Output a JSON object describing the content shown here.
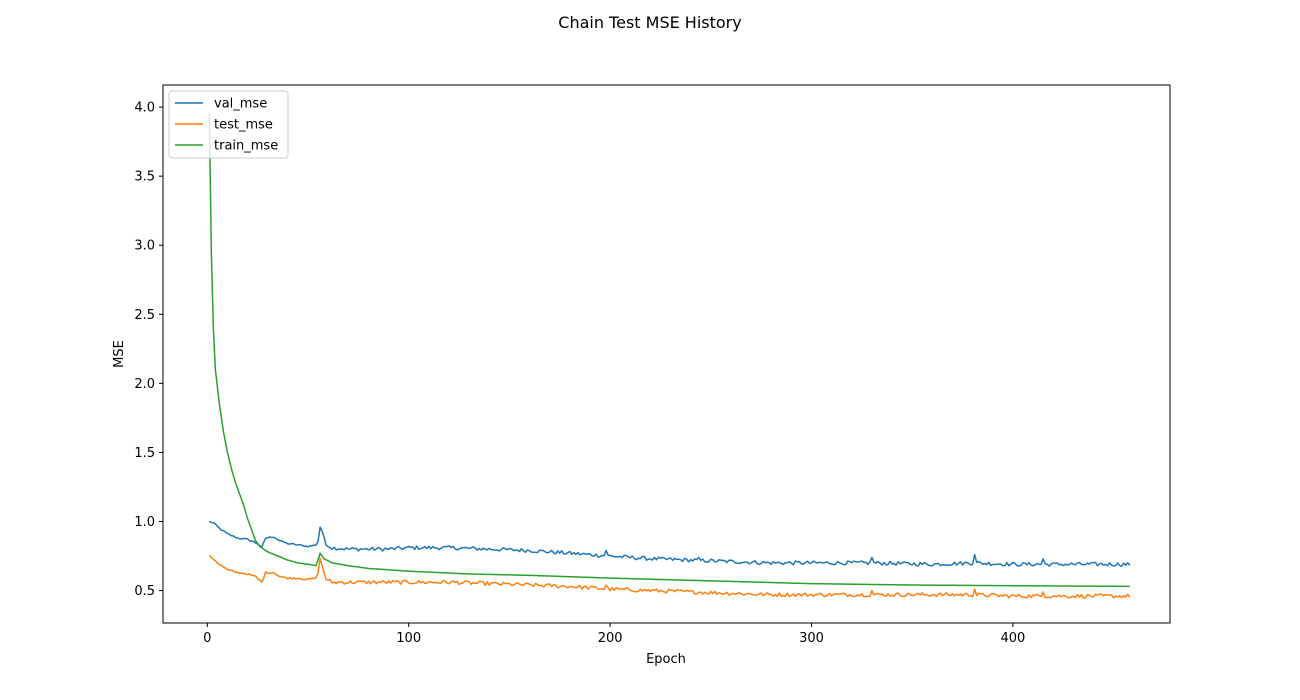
{
  "chart_data": {
    "type": "line",
    "title": "Chain Test MSE History",
    "xlabel": "Epoch",
    "ylabel": "MSE",
    "xlim": [
      -22,
      478
    ],
    "ylim": [
      0.265,
      4.16
    ],
    "xticks": [
      0,
      100,
      200,
      300,
      400
    ],
    "yticks": [
      0.5,
      1.0,
      1.5,
      2.0,
      2.5,
      3.0,
      3.5,
      4.0
    ],
    "ytick_labels": [
      "0.5",
      "1.0",
      "1.5",
      "2.0",
      "2.5",
      "3.0",
      "3.5",
      "4.0"
    ],
    "grid": false,
    "legend": "upper left",
    "epochs": [
      1,
      458
    ],
    "series": [
      {
        "name": "val_mse",
        "color": "#1f77b4",
        "anchors": [
          [
            1,
            1.0
          ],
          [
            3,
            0.99
          ],
          [
            6,
            0.95
          ],
          [
            10,
            0.91
          ],
          [
            15,
            0.88
          ],
          [
            20,
            0.87
          ],
          [
            25,
            0.84
          ],
          [
            27,
            0.81
          ],
          [
            29,
            0.88
          ],
          [
            33,
            0.89
          ],
          [
            36,
            0.86
          ],
          [
            40,
            0.84
          ],
          [
            45,
            0.83
          ],
          [
            50,
            0.82
          ],
          [
            54,
            0.83
          ],
          [
            55,
            0.86
          ],
          [
            56,
            0.96
          ],
          [
            57,
            0.93
          ],
          [
            59,
            0.83
          ],
          [
            62,
            0.81
          ],
          [
            70,
            0.8
          ],
          [
            80,
            0.8
          ],
          [
            90,
            0.8
          ],
          [
            100,
            0.81
          ],
          [
            120,
            0.81
          ],
          [
            140,
            0.8
          ],
          [
            160,
            0.79
          ],
          [
            180,
            0.77
          ],
          [
            200,
            0.75
          ],
          [
            220,
            0.73
          ],
          [
            240,
            0.72
          ],
          [
            260,
            0.71
          ],
          [
            280,
            0.7
          ],
          [
            300,
            0.7
          ],
          [
            330,
            0.7
          ],
          [
            360,
            0.69
          ],
          [
            380,
            0.7
          ],
          [
            400,
            0.69
          ],
          [
            430,
            0.69
          ],
          [
            458,
            0.69
          ]
        ],
        "spikes": [
          [
            198,
            0.79
          ],
          [
            244,
            0.74
          ],
          [
            330,
            0.74
          ],
          [
            381,
            0.76
          ],
          [
            415,
            0.73
          ]
        ]
      },
      {
        "name": "test_mse",
        "color": "#ff7f0e",
        "anchors": [
          [
            1,
            0.75
          ],
          [
            3,
            0.73
          ],
          [
            6,
            0.69
          ],
          [
            10,
            0.65
          ],
          [
            15,
            0.63
          ],
          [
            20,
            0.62
          ],
          [
            24,
            0.6
          ],
          [
            27,
            0.56
          ],
          [
            29,
            0.63
          ],
          [
            33,
            0.63
          ],
          [
            36,
            0.6
          ],
          [
            40,
            0.59
          ],
          [
            45,
            0.59
          ],
          [
            50,
            0.58
          ],
          [
            54,
            0.59
          ],
          [
            55,
            0.63
          ],
          [
            56,
            0.73
          ],
          [
            57,
            0.68
          ],
          [
            59,
            0.58
          ],
          [
            62,
            0.56
          ],
          [
            70,
            0.56
          ],
          [
            90,
            0.56
          ],
          [
            100,
            0.56
          ],
          [
            120,
            0.56
          ],
          [
            140,
            0.55
          ],
          [
            160,
            0.54
          ],
          [
            180,
            0.53
          ],
          [
            200,
            0.51
          ],
          [
            220,
            0.5
          ],
          [
            240,
            0.49
          ],
          [
            260,
            0.48
          ],
          [
            280,
            0.47
          ],
          [
            300,
            0.47
          ],
          [
            330,
            0.47
          ],
          [
            360,
            0.47
          ],
          [
            380,
            0.47
          ],
          [
            400,
            0.46
          ],
          [
            430,
            0.46
          ],
          [
            458,
            0.46
          ]
        ],
        "spikes": [
          [
            198,
            0.54
          ],
          [
            330,
            0.5
          ],
          [
            381,
            0.51
          ],
          [
            415,
            0.49
          ]
        ]
      },
      {
        "name": "train_mse",
        "color": "#2ca02c",
        "anchors": [
          [
            1,
            3.96
          ],
          [
            2,
            2.95
          ],
          [
            3,
            2.4
          ],
          [
            4,
            2.1
          ],
          [
            6,
            1.85
          ],
          [
            8,
            1.65
          ],
          [
            10,
            1.5
          ],
          [
            12,
            1.38
          ],
          [
            14,
            1.28
          ],
          [
            16,
            1.2
          ],
          [
            18,
            1.12
          ],
          [
            20,
            1.02
          ],
          [
            22,
            0.94
          ],
          [
            24,
            0.86
          ],
          [
            26,
            0.82
          ],
          [
            28,
            0.8
          ],
          [
            30,
            0.78
          ],
          [
            35,
            0.75
          ],
          [
            40,
            0.72
          ],
          [
            45,
            0.7
          ],
          [
            50,
            0.69
          ],
          [
            54,
            0.68
          ],
          [
            56,
            0.77
          ],
          [
            58,
            0.73
          ],
          [
            62,
            0.7
          ],
          [
            70,
            0.68
          ],
          [
            80,
            0.66
          ],
          [
            100,
            0.64
          ],
          [
            130,
            0.62
          ],
          [
            160,
            0.61
          ],
          [
            200,
            0.59
          ],
          [
            250,
            0.57
          ],
          [
            300,
            0.55
          ],
          [
            350,
            0.54
          ],
          [
            400,
            0.535
          ],
          [
            458,
            0.53
          ]
        ]
      }
    ]
  }
}
